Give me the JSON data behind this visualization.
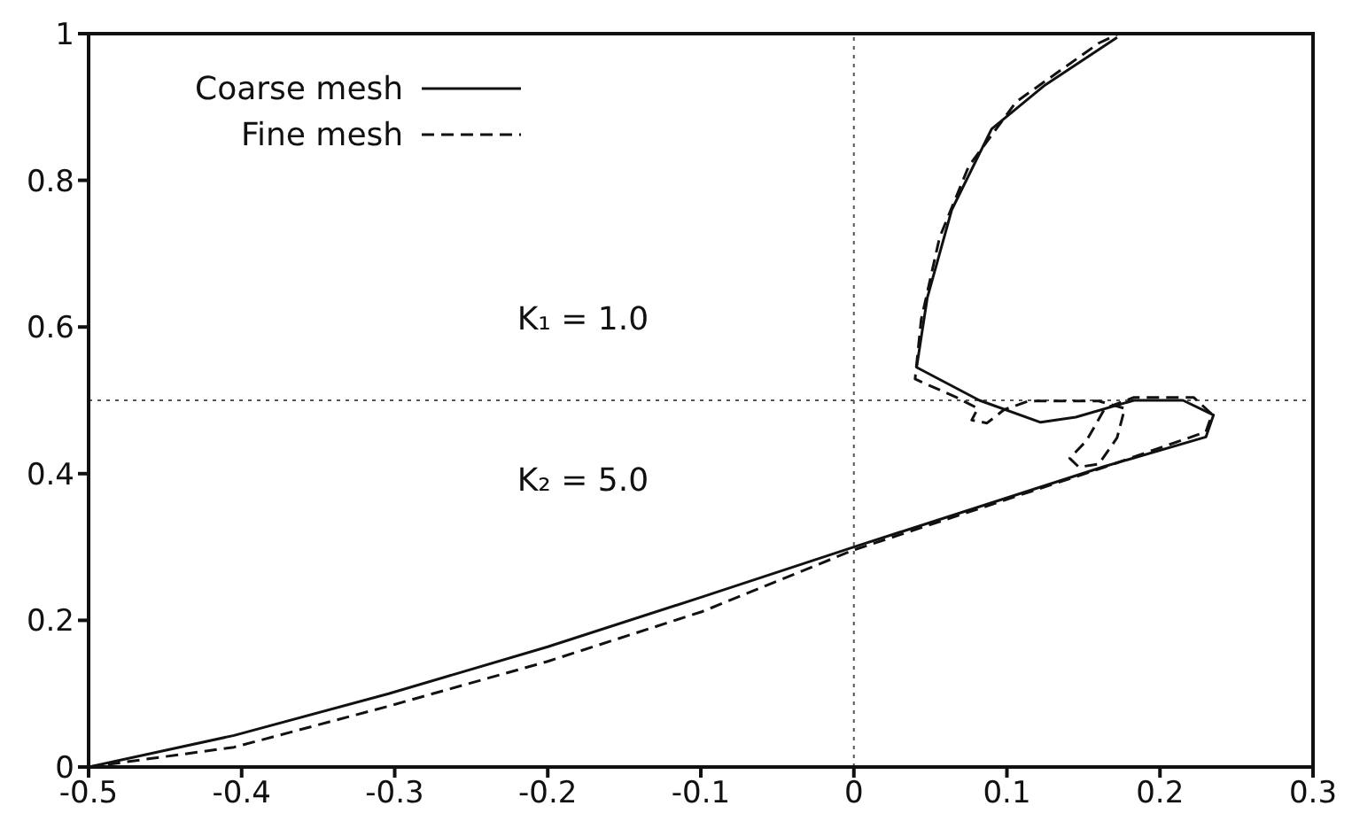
{
  "chart_data": {
    "type": "line",
    "xlim": [
      -0.5,
      0.3
    ],
    "ylim": [
      0,
      1
    ],
    "xticks": [
      -0.5,
      -0.4,
      -0.3,
      -0.2,
      -0.1,
      0,
      0.1,
      0.2,
      0.3
    ],
    "yticks": [
      0,
      0.2,
      0.4,
      0.6,
      0.8,
      1
    ],
    "grid": false,
    "legend": "top left",
    "marker": "none",
    "ref_lines": [
      {
        "axis": "x",
        "value": 0,
        "line_style": "dotted",
        "color": "#555555"
      },
      {
        "axis": "y",
        "value": 0.5,
        "line_style": "dotted",
        "color": "#555555"
      }
    ],
    "annotations": [
      "K₁ = 1.0",
      "K₂ = 5.0"
    ],
    "series": [
      {
        "name": "Coarse mesh",
        "color": "#111111",
        "line_style": "solid",
        "x": [
          -0.5,
          -0.405,
          -0.304,
          -0.2,
          -0.099,
          0,
          0.164,
          0.23,
          0.235,
          0.215,
          0.183,
          0.145,
          0.122,
          0.082,
          0.041,
          0.048,
          0.064,
          0.09,
          0.125,
          0.172
        ],
        "values": [
          0,
          0.043,
          0.1,
          0.164,
          0.232,
          0.3,
          0.41,
          0.45,
          0.48,
          0.5,
          0.5,
          0.477,
          0.47,
          0.5,
          0.545,
          0.64,
          0.76,
          0.87,
          0.93,
          0.995
        ]
      },
      {
        "name": "Fine mesh",
        "color": "#111111",
        "line_style": "dashed",
        "x": [
          -0.5,
          -0.405,
          -0.304,
          -0.2,
          -0.099,
          0,
          0.164,
          0.23,
          0.234,
          0.222,
          0.183,
          0.164,
          0.152,
          0.141,
          0.147,
          0.16,
          0.172,
          0.177,
          0.16,
          0.114,
          0.098,
          0.087,
          0.077,
          0.081,
          0.067,
          0.04,
          0.044,
          0.056,
          0.075,
          0.106,
          0.16,
          0.172
        ],
        "values": [
          0,
          0.027,
          0.083,
          0.144,
          0.212,
          0.296,
          0.409,
          0.457,
          0.481,
          0.504,
          0.504,
          0.489,
          0.445,
          0.421,
          0.409,
          0.413,
          0.449,
          0.489,
          0.499,
          0.499,
          0.487,
          0.469,
          0.473,
          0.489,
          0.504,
          0.529,
          0.61,
          0.722,
          0.819,
          0.907,
          0.987,
          0.999
        ]
      }
    ]
  }
}
